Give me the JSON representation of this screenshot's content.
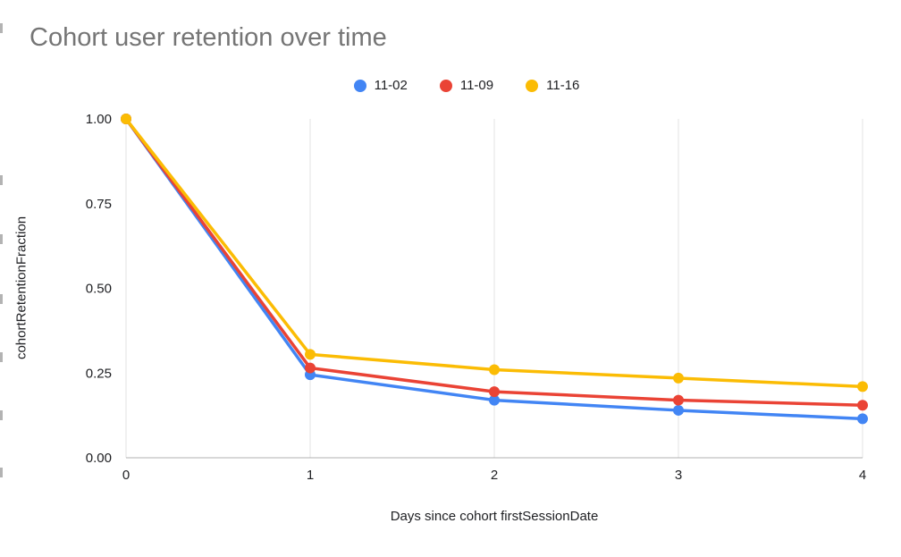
{
  "style": {
    "background": "#ffffff",
    "title_color": "#757575",
    "tick_label_color": "#202124",
    "axis_title_color": "#202124",
    "gridline_color": "#e3e3e3",
    "baseline_color": "#b0b0b0"
  },
  "chart_data": {
    "type": "line",
    "title": "Cohort user retention over time",
    "xlabel": "Days since cohort firstSessionDate",
    "ylabel": "cohortRetentionFraction",
    "x": [
      0,
      1,
      2,
      3,
      4
    ],
    "series": [
      {
        "name": "11-02",
        "color": "#4285F4",
        "values": [
          1.0,
          0.245,
          0.17,
          0.14,
          0.115
        ]
      },
      {
        "name": "11-09",
        "color": "#EA4335",
        "values": [
          1.0,
          0.265,
          0.195,
          0.17,
          0.155
        ]
      },
      {
        "name": "11-16",
        "color": "#FBBC04",
        "values": [
          1.0,
          0.305,
          0.26,
          0.235,
          0.21
        ]
      }
    ],
    "xlim": [
      0,
      4
    ],
    "ylim": [
      0,
      1
    ],
    "xticks": [
      0,
      1,
      2,
      3,
      4
    ],
    "yticks": [
      0,
      0.25,
      0.5,
      0.75,
      1
    ],
    "ytick_decimals": 2,
    "grid": "vertical",
    "legend_position": "top"
  }
}
